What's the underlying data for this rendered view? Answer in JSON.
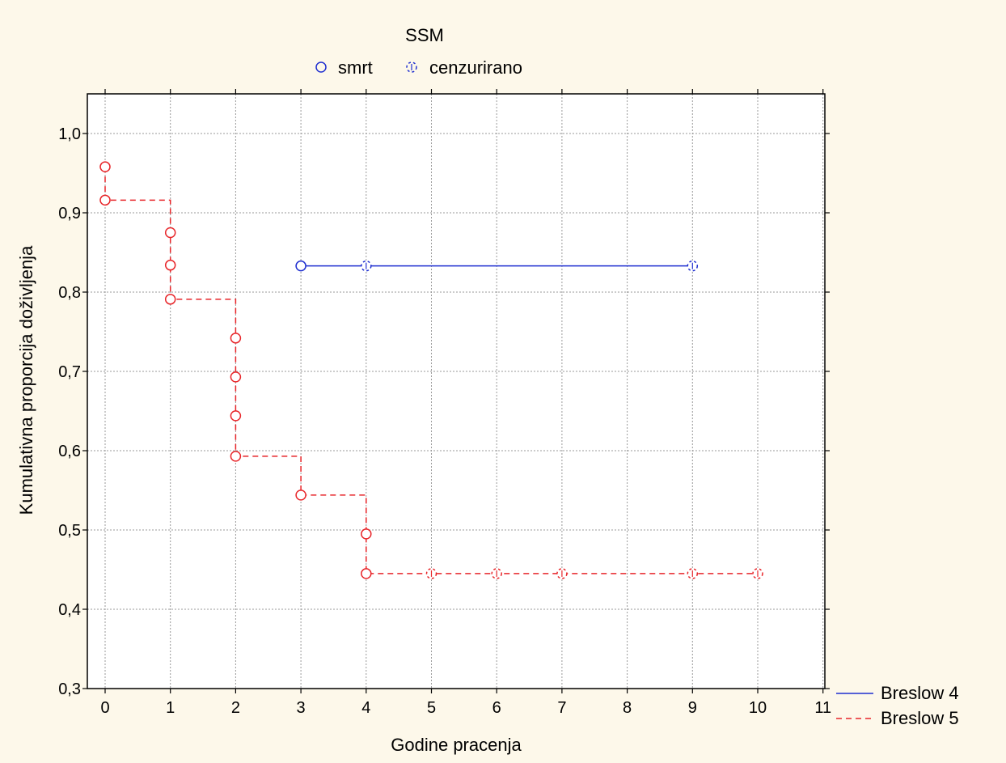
{
  "chart_data": {
    "type": "line",
    "title": "",
    "xlabel": "Godine pracenja",
    "ylabel": "Kumulativna proporcija doživljenja",
    "xlim": [
      -0.3,
      11
    ],
    "ylim": [
      0.3,
      1.05
    ],
    "xticks": [
      0,
      1,
      2,
      3,
      4,
      5,
      6,
      7,
      8,
      9,
      10,
      11
    ],
    "xtick_labels": [
      "0",
      "1",
      "2",
      "3",
      "4",
      "5",
      "6",
      "7",
      "8",
      "9",
      "10",
      "11"
    ],
    "yticks": [
      0.3,
      0.4,
      0.5,
      0.6,
      0.7,
      0.8,
      0.9,
      1.0
    ],
    "ytick_labels": [
      "0,3",
      "0,4",
      "0,5",
      "0,6",
      "0,7",
      "0,8",
      "0,9",
      "1,0"
    ],
    "grid": true,
    "marker_legend": {
      "title": "SSM",
      "entries": [
        {
          "label": "smrt",
          "marker": "open-circle"
        },
        {
          "label": "cenzurirano",
          "marker": "dashed-circle"
        }
      ],
      "placement": "top-center"
    },
    "line_legend_placement": "bottom-right",
    "series": [
      {
        "name": "Breslow 4",
        "color": "#1f2fd0",
        "line_style": "solid",
        "step": [
          [
            3,
            0.833
          ],
          [
            9,
            0.833
          ]
        ],
        "events": [
          [
            3,
            0.833
          ]
        ],
        "censored": [
          [
            4,
            0.833
          ],
          [
            9,
            0.833
          ]
        ]
      },
      {
        "name": "Breslow 5",
        "color": "#e8262a",
        "line_style": "dashed",
        "step": [
          [
            0,
            0.958
          ],
          [
            0,
            0.916
          ],
          [
            1,
            0.916
          ],
          [
            1,
            0.791
          ],
          [
            2,
            0.791
          ],
          [
            2,
            0.593
          ],
          [
            3,
            0.593
          ],
          [
            3,
            0.544
          ],
          [
            4,
            0.544
          ],
          [
            4,
            0.445
          ],
          [
            10,
            0.445
          ]
        ],
        "events": [
          [
            0,
            0.958
          ],
          [
            0,
            0.916
          ],
          [
            1,
            0.875
          ],
          [
            1,
            0.834
          ],
          [
            1,
            0.791
          ],
          [
            2,
            0.742
          ],
          [
            2,
            0.693
          ],
          [
            2,
            0.644
          ],
          [
            2,
            0.593
          ],
          [
            3,
            0.544
          ],
          [
            4,
            0.495
          ],
          [
            4,
            0.445
          ]
        ],
        "censored": [
          [
            5,
            0.445
          ],
          [
            6,
            0.445
          ],
          [
            7,
            0.445
          ],
          [
            9,
            0.445
          ],
          [
            10,
            0.445
          ]
        ]
      }
    ]
  }
}
